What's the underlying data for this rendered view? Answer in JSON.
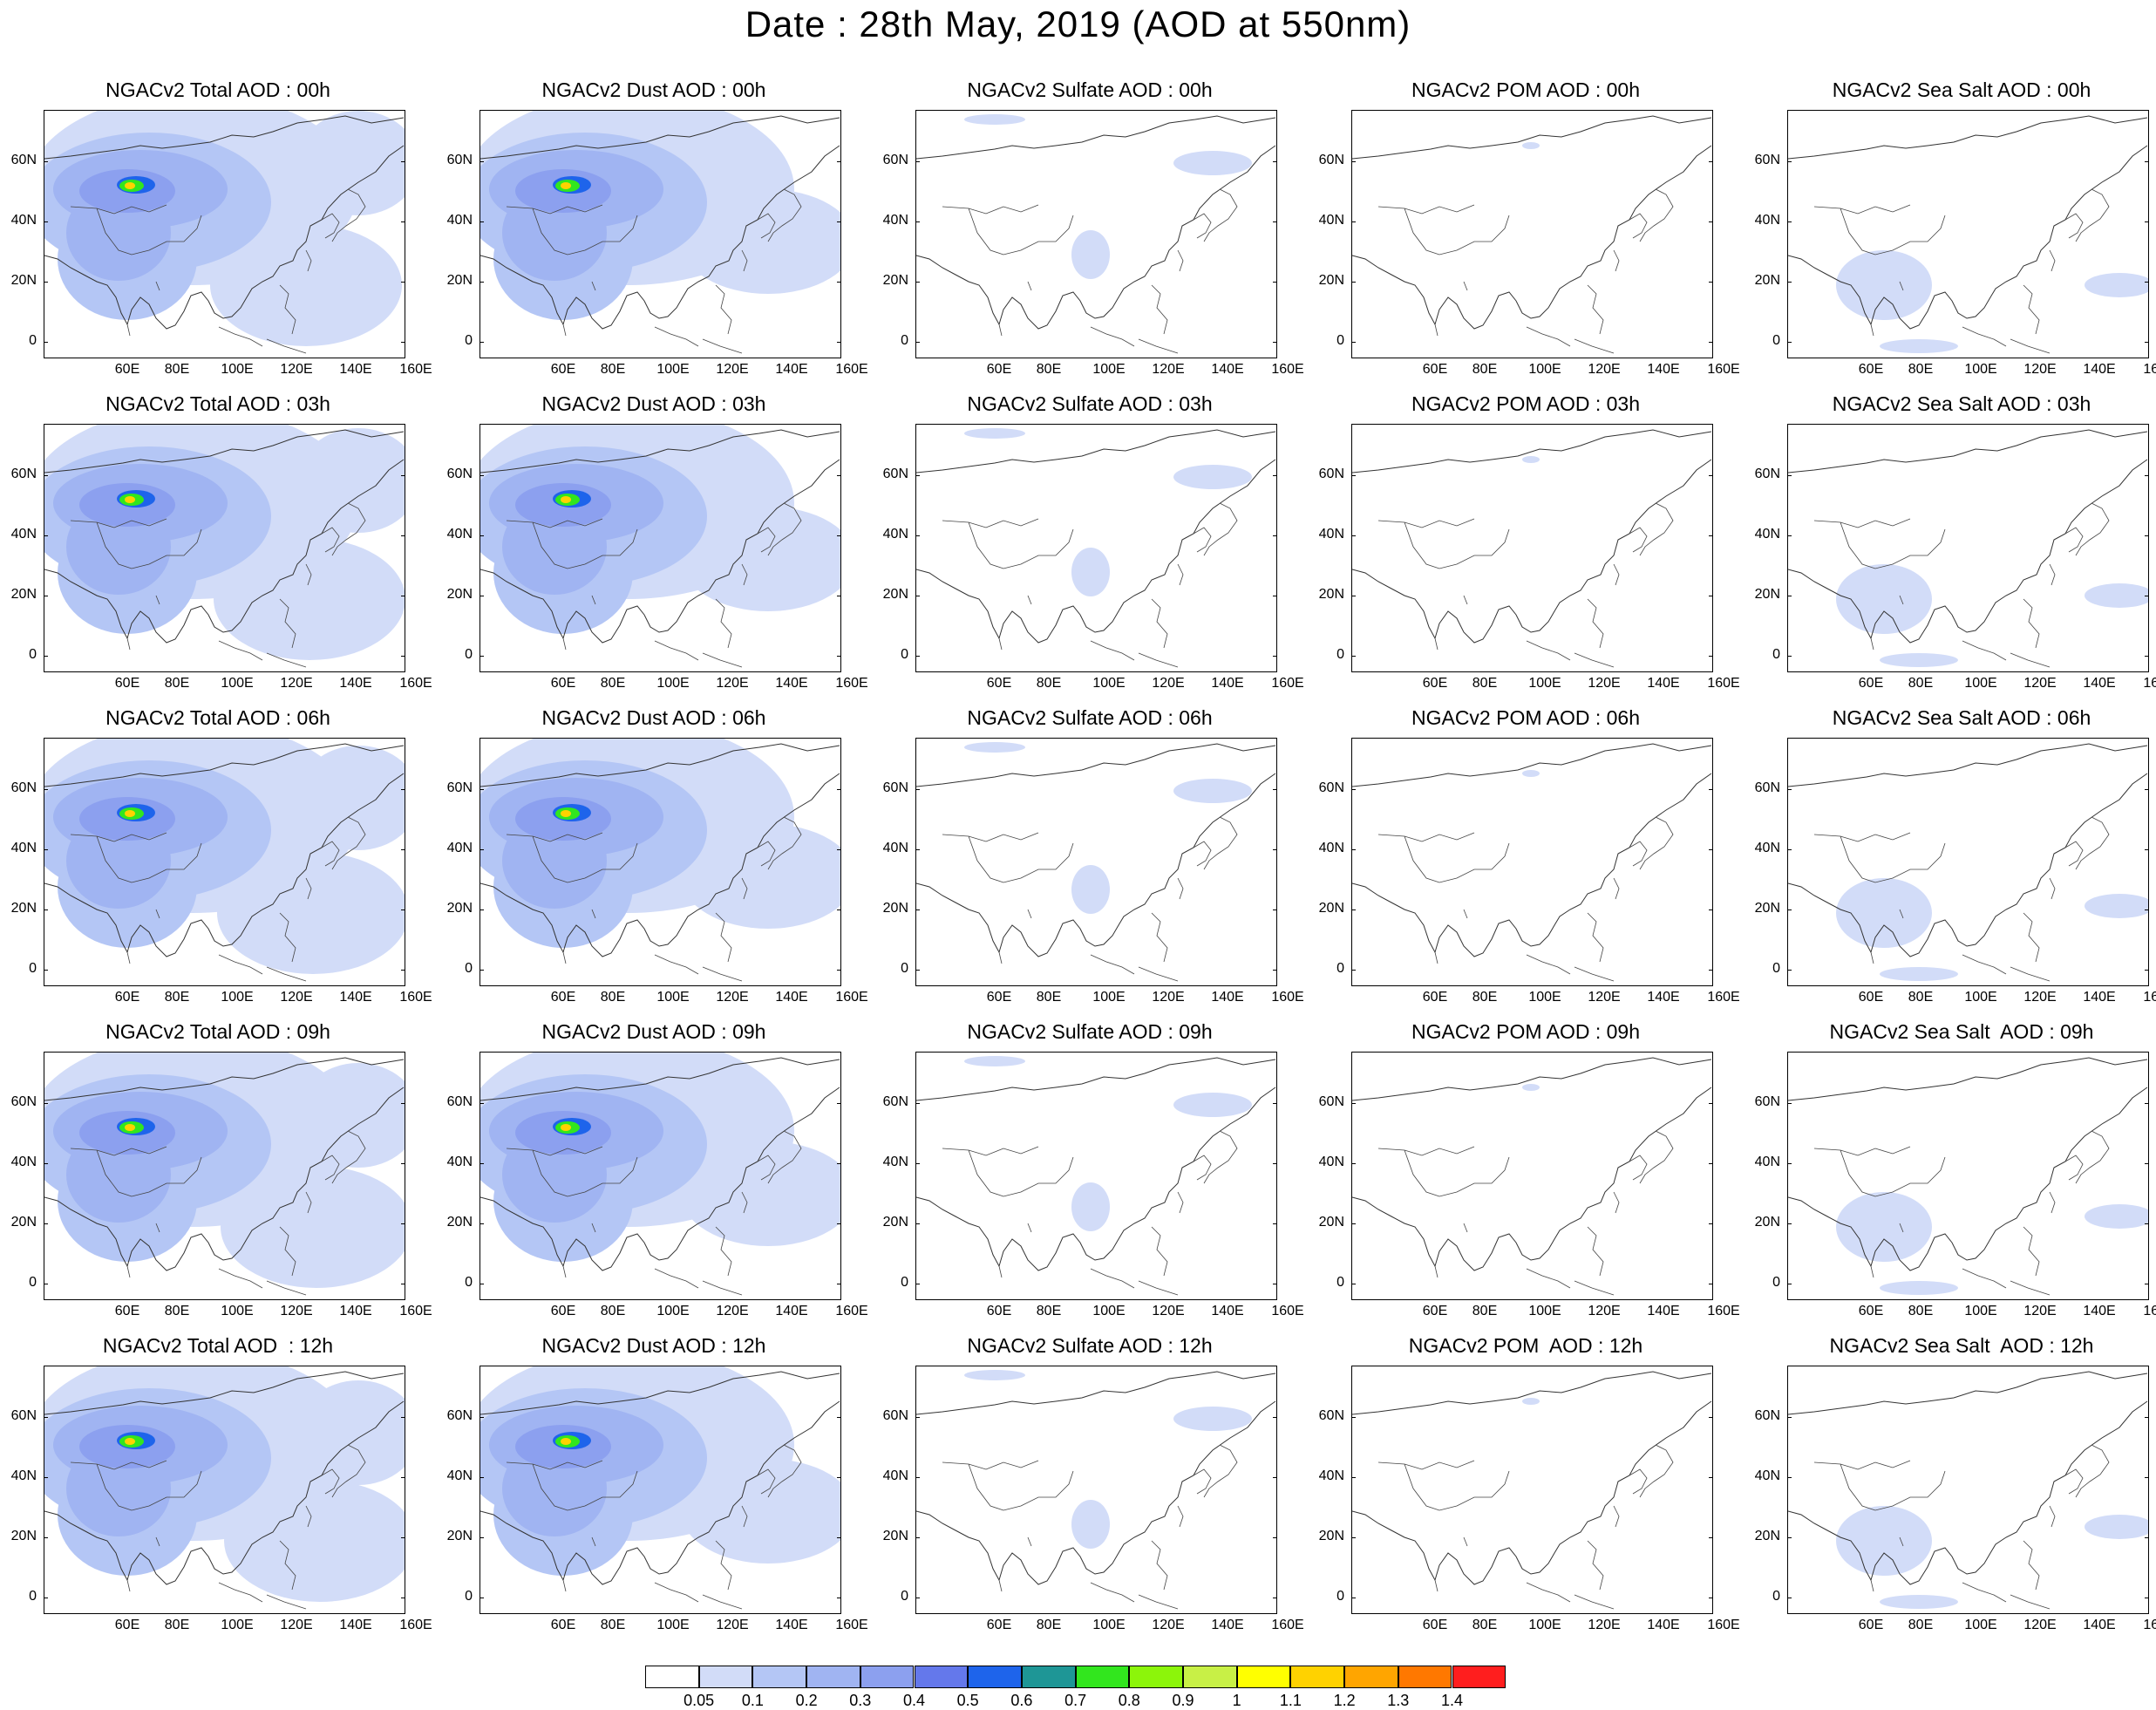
{
  "title": "Date : 28th May, 2019 (AOD at 550nm)",
  "map_axes": {
    "lat_labels": [
      "60N",
      "40N",
      "20N",
      "0"
    ],
    "lon_labels": [
      "60E",
      "80E",
      "100E",
      "120E",
      "140E",
      "160E"
    ]
  },
  "species_order": [
    "total",
    "dust",
    "sulfate",
    "pom",
    "seasalt"
  ],
  "panels": [
    [
      {
        "title": "NGACv2 Total AOD : 00h",
        "field": "total"
      },
      {
        "title": "NGACv2 Dust AOD : 00h",
        "field": "dust"
      },
      {
        "title": "NGACv2 Sulfate AOD : 00h",
        "field": "sulfate"
      },
      {
        "title": "NGACv2 POM AOD : 00h",
        "field": "pom"
      },
      {
        "title": "NGACv2 Sea Salt AOD : 00h",
        "field": "seasalt"
      }
    ],
    [
      {
        "title": "NGACv2 Total AOD : 03h",
        "field": "total"
      },
      {
        "title": "NGACv2 Dust AOD : 03h",
        "field": "dust"
      },
      {
        "title": "NGACv2 Sulfate AOD : 03h",
        "field": "sulfate"
      },
      {
        "title": "NGACv2 POM AOD : 03h",
        "field": "pom"
      },
      {
        "title": "NGACv2 Sea Salt AOD : 03h",
        "field": "seasalt"
      }
    ],
    [
      {
        "title": "NGACv2 Total AOD : 06h",
        "field": "total"
      },
      {
        "title": "NGACv2 Dust AOD : 06h",
        "field": "dust"
      },
      {
        "title": "NGACv2 Sulfate AOD : 06h",
        "field": "sulfate"
      },
      {
        "title": "NGACv2 POM AOD : 06h",
        "field": "pom"
      },
      {
        "title": "NGACv2 Sea Salt AOD : 06h",
        "field": "seasalt"
      }
    ],
    [
      {
        "title": "NGACv2 Total AOD : 09h",
        "field": "total"
      },
      {
        "title": "NGACv2 Dust AOD : 09h",
        "field": "dust"
      },
      {
        "title": "NGACv2 Sulfate AOD : 09h",
        "field": "sulfate"
      },
      {
        "title": "NGACv2 POM AOD : 09h",
        "field": "pom"
      },
      {
        "title": "NGACv2 Sea Salt  AOD : 09h",
        "field": "seasalt"
      }
    ],
    [
      {
        "title": "NGACv2 Total AOD  : 12h",
        "field": "total"
      },
      {
        "title": "NGACv2 Dust AOD : 12h",
        "field": "dust"
      },
      {
        "title": "NGACv2 Sulfate AOD : 12h",
        "field": "sulfate"
      },
      {
        "title": "NGACv2 POM  AOD : 12h",
        "field": "pom"
      },
      {
        "title": "NGACv2 Sea Salt  AOD : 12h",
        "field": "seasalt"
      }
    ]
  ],
  "colorbar": {
    "colors": [
      "#ffffff",
      "#d2dcf8",
      "#b4c6f5",
      "#a0b4f2",
      "#8ca0ef",
      "#6478eb",
      "#1e64eb",
      "#1e9696",
      "#32e61e",
      "#8cf50a",
      "#c8f046",
      "#ffff00",
      "#ffd200",
      "#ffa500",
      "#ff7800",
      "#ff1e1e"
    ],
    "labels": [
      "0.05",
      "0.1",
      "0.2",
      "0.3",
      "0.4",
      "0.5",
      "0.6",
      "0.7",
      "0.8",
      "0.9",
      "1",
      "1.1",
      "1.2",
      "1.3",
      "1.4"
    ]
  }
}
